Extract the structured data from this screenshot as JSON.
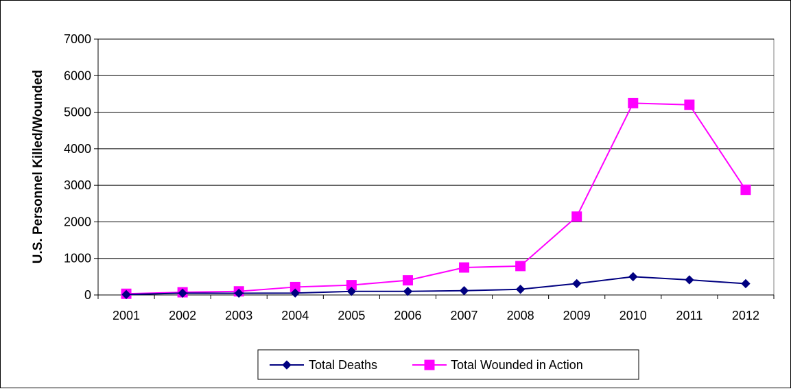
{
  "chart_data": {
    "type": "line",
    "title": "",
    "xlabel": "",
    "ylabel": "U.S. Personnel Killed/Wounded",
    "categories": [
      "2001",
      "2002",
      "2003",
      "2004",
      "2005",
      "2006",
      "2007",
      "2008",
      "2009",
      "2010",
      "2011",
      "2012"
    ],
    "ylim": [
      0,
      7000
    ],
    "yticks": [
      0,
      1000,
      2000,
      3000,
      4000,
      5000,
      6000,
      7000
    ],
    "grid": true,
    "legend_position": "bottom",
    "series": [
      {
        "name": "Total Deaths",
        "color": "#000080",
        "marker": "diamond",
        "values": [
          12,
          49,
          48,
          52,
          99,
          98,
          117,
          155,
          311,
          499,
          414,
          310
        ]
      },
      {
        "name": "Total Wounded in Action",
        "color": "#FF00FF",
        "marker": "square",
        "values": [
          33,
          74,
          99,
          217,
          270,
          401,
          751,
          791,
          2144,
          5247,
          5204,
          2877
        ]
      }
    ]
  }
}
